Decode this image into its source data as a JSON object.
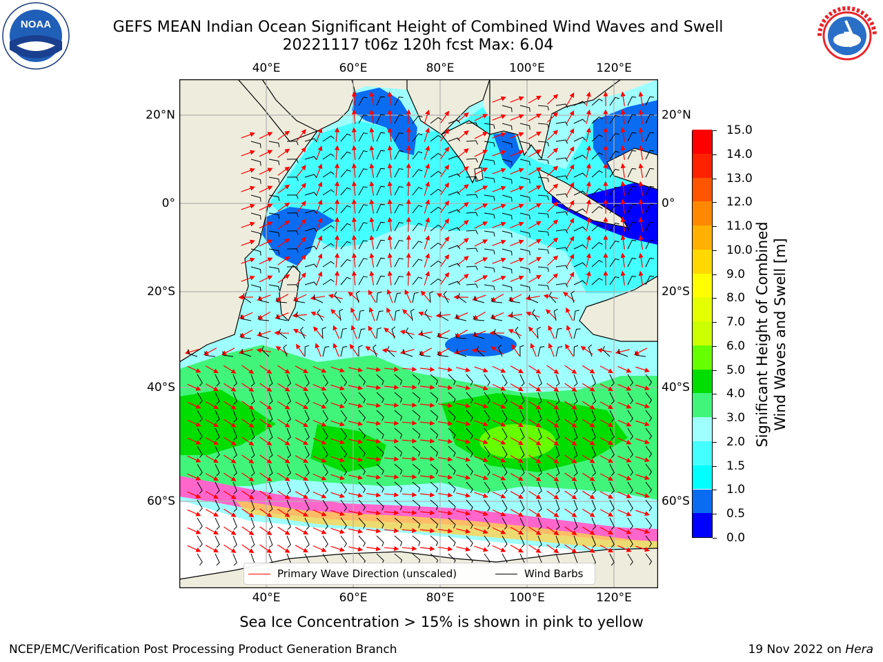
{
  "title_line1": "GEFS MEAN Indian Ocean Significant Height of Combined Wind Waves and Swell",
  "title_line2": "20221117 t06z 120h fcst   Max: 6.04",
  "logos": {
    "left": "noaa-logo",
    "right": "nws-logo",
    "noaa_text": "NOAA"
  },
  "axes": {
    "lon_ticks": [
      "40°E",
      "60°E",
      "80°E",
      "100°E",
      "120°E"
    ],
    "lat_ticks": [
      "20°N",
      "0°",
      "20°S",
      "40°S",
      "60°S"
    ]
  },
  "colorbar": {
    "label_line1": "Significant Height of Combined",
    "label_line2": "Wind Waves and Swell [m]",
    "ticks": [
      "0.0",
      "0.5",
      "1.0",
      "1.5",
      "2.0",
      "3.0",
      "4.0",
      "5.0",
      "6.0",
      "7.0",
      "8.0",
      "9.0",
      "10.0",
      "11.0",
      "12.0",
      "13.0",
      "14.0",
      "15.0"
    ],
    "colors": [
      "#0000ff",
      "#0a6cf0",
      "#00ffff",
      "#44ffff",
      "#9fffff",
      "#40f57a",
      "#00dd00",
      "#66ff00",
      "#ccff00",
      "#e6ff00",
      "#ffff00",
      "#ffd800",
      "#ffb000",
      "#ff8800",
      "#ff5500",
      "#ff2200",
      "#ff0000"
    ]
  },
  "legend": {
    "primary_wave": "Primary Wave Direction (unscaled)",
    "wind_barbs": "Wind Barbs",
    "primary_wave_color": "#ff0000",
    "wind_barbs_color": "#000000"
  },
  "caption": "Sea Ice Concentration > 15% is shown in pink to yellow",
  "footer": {
    "left": "NCEP/EMC/Verification Post Processing Product Generation Branch",
    "right_date": "19 Nov 2022 on ",
    "right_host": "Hera"
  },
  "colors": {
    "land": "#eeeddd",
    "ocean_calm": "#9fffff",
    "ice_white": "#ffffff"
  }
}
